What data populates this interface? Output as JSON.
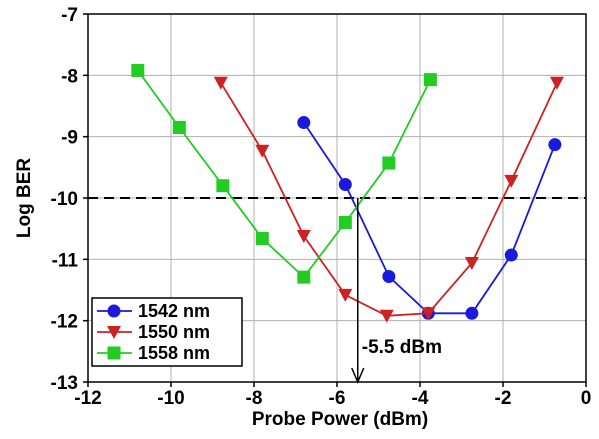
{
  "chart_data": {
    "type": "line",
    "xlabel": "Probe Power (dBm)",
    "ylabel": "Log BER",
    "xlim": [
      -12,
      0
    ],
    "ylim": [
      -13,
      -7
    ],
    "x_ticks": [
      "-12",
      "-10",
      "-8",
      "-6",
      "-4",
      "-2",
      "0"
    ],
    "y_ticks": [
      "-7",
      "-8",
      "-9",
      "-10",
      "-11",
      "-12",
      "-13"
    ],
    "grid": true,
    "legend_position": "bottom-left",
    "threshold": {
      "y": -10,
      "style": "dashed"
    },
    "annotation": {
      "text": "-5.5 dBm",
      "x": -5.5
    },
    "series": [
      {
        "name": "1542 nm",
        "color": "#1a1adc",
        "marker": "circle",
        "points": [
          [
            -6.8,
            -8.77
          ],
          [
            -5.8,
            -9.78
          ],
          [
            -4.75,
            -11.28
          ],
          [
            -3.8,
            -11.88
          ],
          [
            -2.75,
            -11.88
          ],
          [
            -1.8,
            -10.93
          ],
          [
            -0.75,
            -9.13
          ]
        ]
      },
      {
        "name": "1550 nm",
        "color": "#cc2222",
        "marker": "triangle-down",
        "points": [
          [
            -8.8,
            -8.12
          ],
          [
            -7.8,
            -9.23
          ],
          [
            -6.8,
            -10.62
          ],
          [
            -5.8,
            -11.58
          ],
          [
            -4.8,
            -11.92
          ],
          [
            -3.8,
            -11.88
          ],
          [
            -2.75,
            -11.06
          ],
          [
            -1.8,
            -9.72
          ],
          [
            -0.7,
            -8.12
          ]
        ]
      },
      {
        "name": "1558 nm",
        "color": "#22cc22",
        "marker": "square",
        "points": [
          [
            -10.8,
            -7.92
          ],
          [
            -9.8,
            -8.85
          ],
          [
            -8.75,
            -9.8
          ],
          [
            -7.8,
            -10.66
          ],
          [
            -6.8,
            -11.29
          ],
          [
            -5.8,
            -10.4
          ],
          [
            -4.75,
            -9.43
          ],
          [
            -3.75,
            -8.07
          ]
        ]
      }
    ]
  }
}
